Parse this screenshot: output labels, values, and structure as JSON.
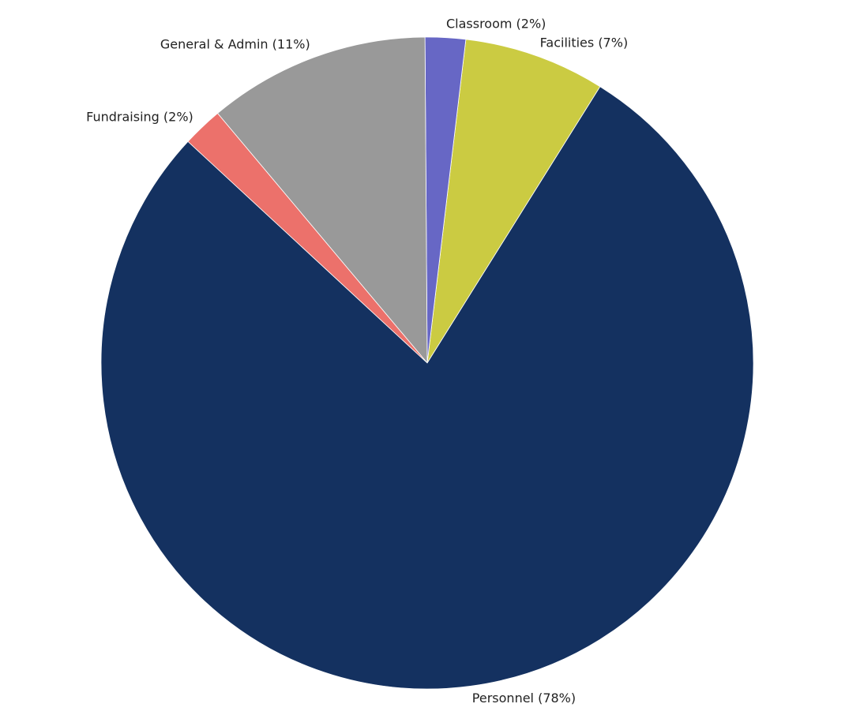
{
  "chart_data": {
    "type": "pie",
    "categories": [
      "Facilities (7%)",
      "Classroom (2%)",
      "General & Admin (11%)",
      "Fundraising (2%)",
      "Personnel (78%)"
    ],
    "values": [
      7,
      2,
      11,
      2,
      78
    ],
    "colors": [
      "#cbcb42",
      "#6767c5",
      "#999999",
      "#ec716b",
      "#143160"
    ],
    "start_angle": 58
  }
}
